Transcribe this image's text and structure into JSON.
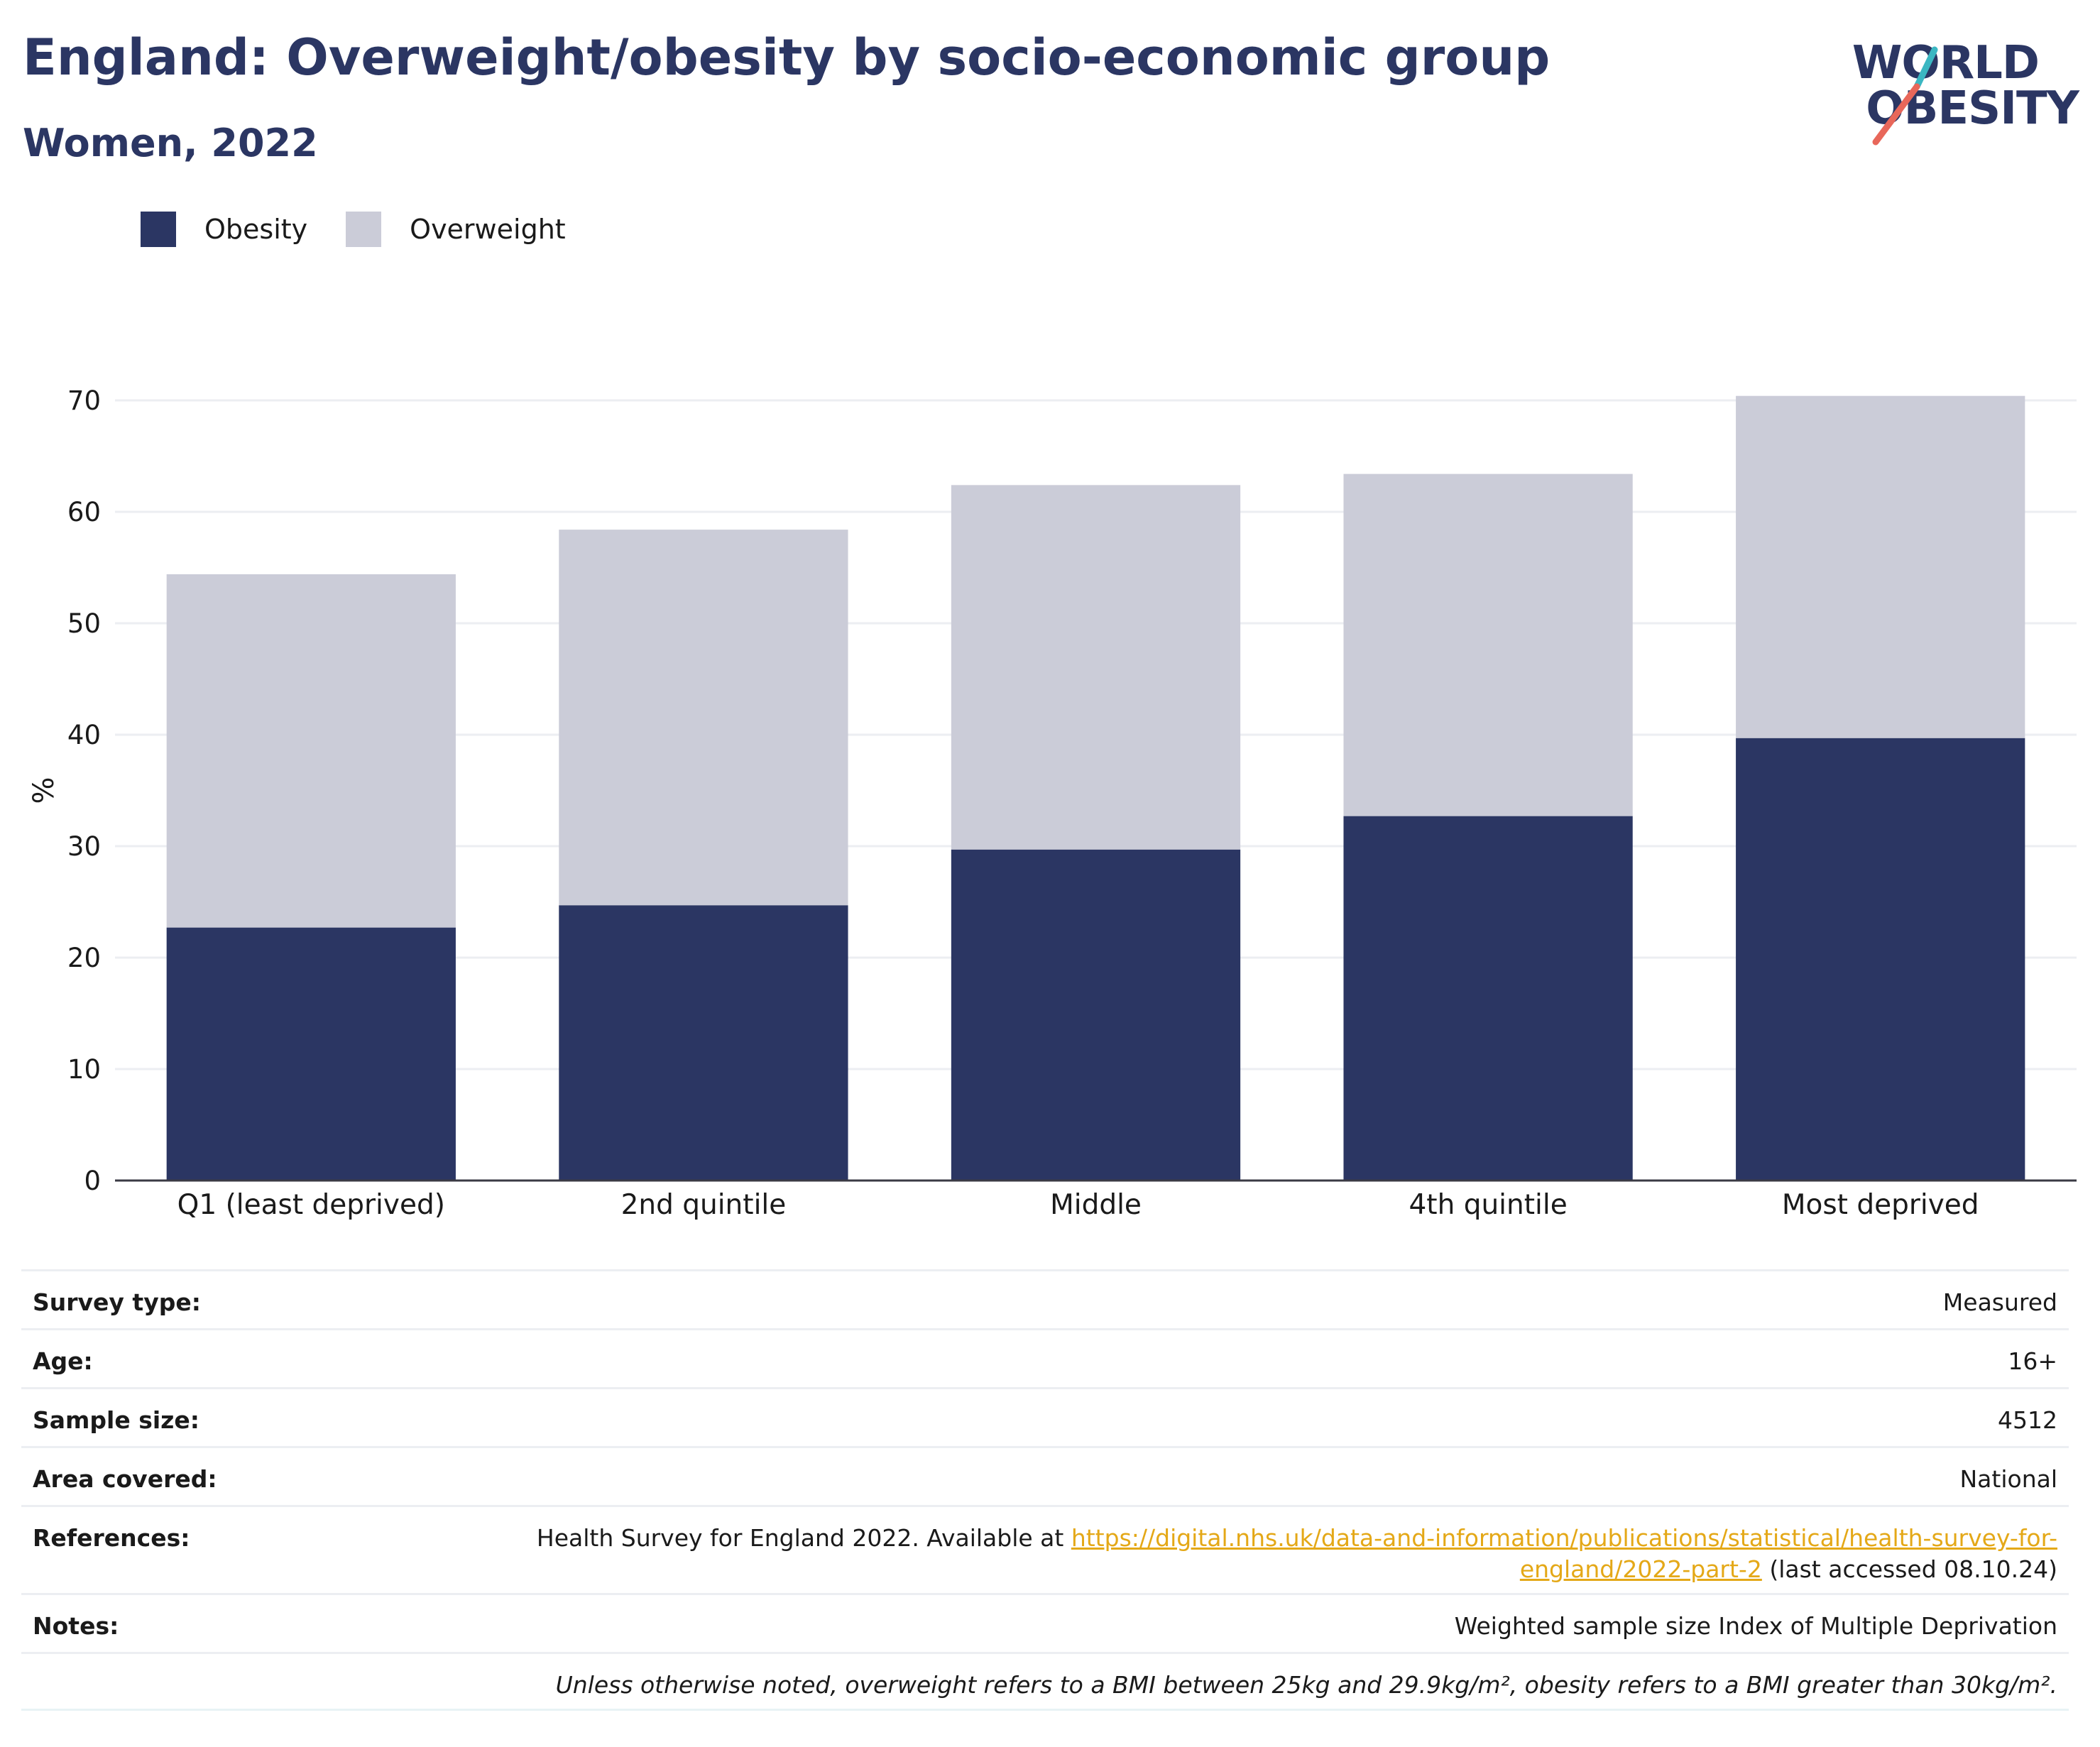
{
  "header": {
    "title": "England: Overweight/obesity by socio-economic group",
    "subtitle": "Women, 2022"
  },
  "logo": {
    "line1": "WORLD",
    "line2": "OBESITY"
  },
  "colors": {
    "obesity": "#2b3663",
    "overweight": "#cbccd8",
    "accent_teal": "#3bb7c2",
    "accent_coral": "#e8675a",
    "link": "#e4a817"
  },
  "legend": [
    {
      "label": "Obesity",
      "color": "#2b3663"
    },
    {
      "label": "Overweight",
      "color": "#cbccd8"
    }
  ],
  "chart_data": {
    "type": "bar",
    "stacked": true,
    "categories": [
      "Q1 (least deprived)",
      "2nd quintile",
      "Middle",
      "4th quintile",
      "Most deprived"
    ],
    "series": [
      {
        "name": "Obesity",
        "values": [
          22.7,
          24.7,
          29.7,
          32.7,
          39.7
        ]
      },
      {
        "name": "Overweight",
        "values": [
          31.7,
          33.7,
          32.7,
          30.7,
          30.7
        ]
      }
    ],
    "ylabel": "%",
    "xlabel": "",
    "ylim": [
      0,
      70
    ],
    "yticks": [
      0,
      10,
      20,
      30,
      40,
      50,
      60,
      70
    ],
    "grid": true,
    "legend_position": "top-left"
  },
  "info": {
    "survey_type": {
      "label": "Survey type:",
      "value": "Measured"
    },
    "age": {
      "label": "Age:",
      "value": "16+"
    },
    "sample_size": {
      "label": "Sample size:",
      "value": "4512"
    },
    "area_covered": {
      "label": "Area covered:",
      "value": "National"
    },
    "references": {
      "label": "References:",
      "prefix": "Health Survey for England 2022. Available at ",
      "link_part1": "https://digital.nhs.uk/data-and-information/publications/statistical/health-survey-for-",
      "link_part2": "england/2022-part-2",
      "suffix": " (last accessed 08.10.24)"
    },
    "notes": {
      "label": "Notes:",
      "value": "Weighted sample size Index of Multiple Deprivation"
    },
    "footnote": "Unless otherwise noted, overweight refers to a BMI between 25kg and 29.9kg/m², obesity refers to a BMI greater than 30kg/m²."
  }
}
